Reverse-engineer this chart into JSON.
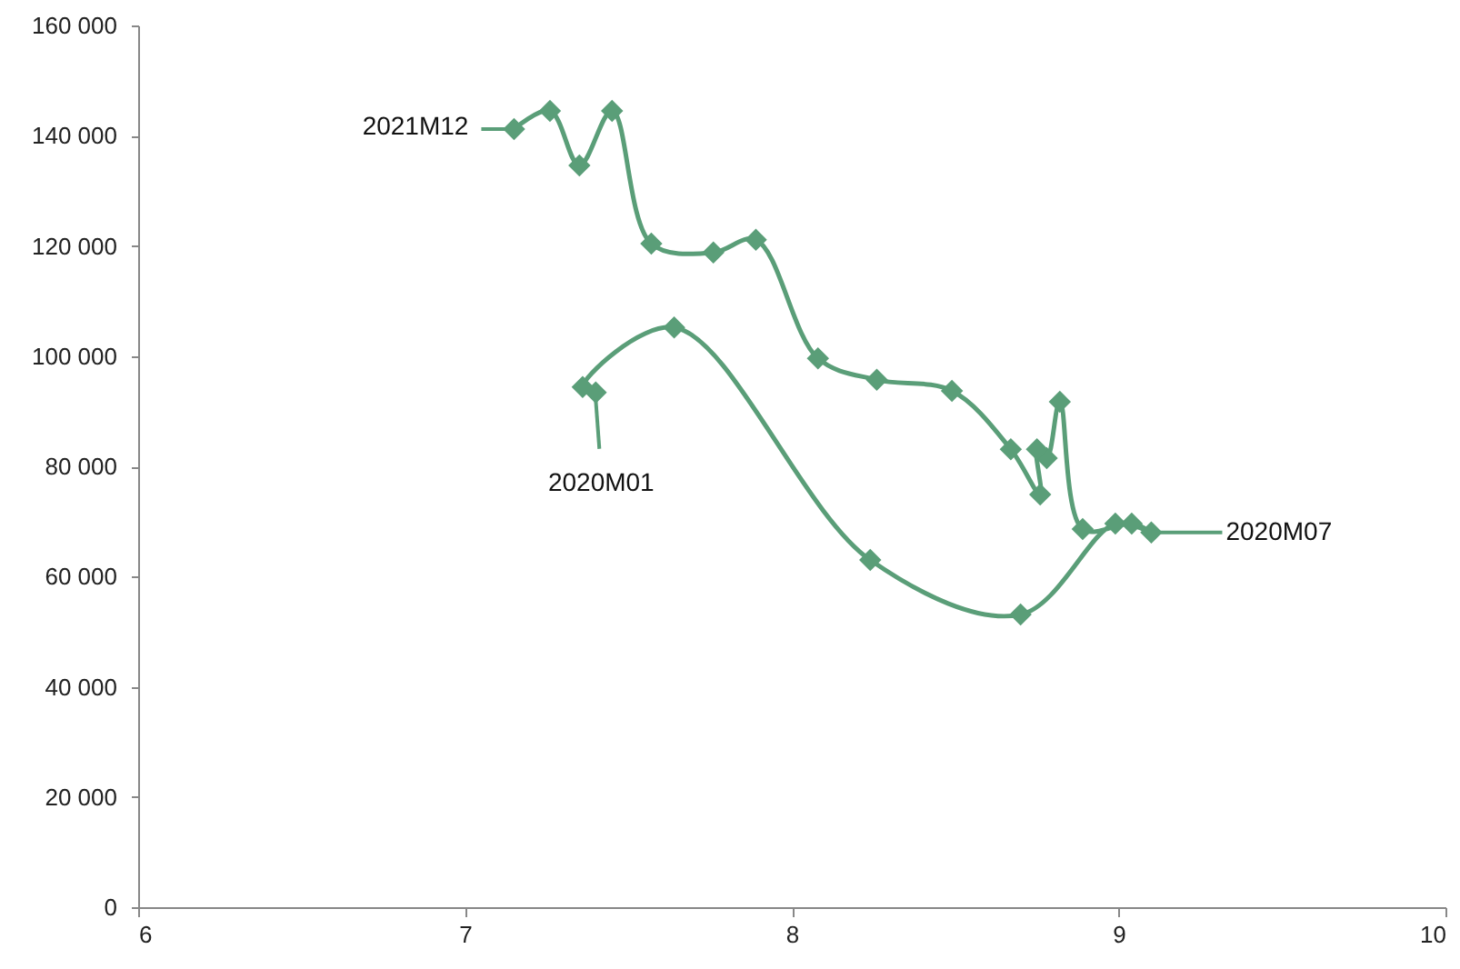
{
  "chart_data": {
    "type": "line",
    "marker": "diamond",
    "line_style": "solid",
    "grid": false,
    "x": [
      7.4,
      7.36,
      7.64,
      8.24,
      8.7,
      8.99,
      9.1,
      9.04,
      8.89,
      8.82,
      8.78,
      8.75,
      8.76,
      8.67,
      8.49,
      8.26,
      8.08,
      7.89,
      7.76,
      7.57,
      7.45,
      7.35,
      7.26,
      7.15
    ],
    "series": [
      {
        "color": "#5a9e78",
        "values": [
          93400,
          94400,
          105200,
          63000,
          53100,
          69600,
          68000,
          69600,
          68600,
          91700,
          81500,
          83100,
          74900,
          83100,
          93700,
          95700,
          99600,
          121100,
          118800,
          120400,
          144500,
          134600,
          144500,
          141200
        ]
      }
    ],
    "xlim": [
      6,
      10
    ],
    "xticks": [
      6,
      7,
      8,
      9,
      10
    ],
    "ylim": [
      0,
      160000
    ],
    "yticks": [
      0,
      {
        "value": 20000,
        "label": "20 000"
      },
      {
        "value": 40000,
        "label": "40 000"
      },
      {
        "value": 60000,
        "label": "60 000"
      },
      {
        "value": 80000,
        "label": "80 000"
      },
      {
        "value": 100000,
        "label": "100 000"
      },
      {
        "value": 120000,
        "label": "120 000"
      },
      {
        "value": 140000,
        "label": "140 000"
      },
      {
        "value": 160000,
        "label": "160 000"
      }
    ],
    "annotations": [
      {
        "text": "2020M01",
        "x": 7.4,
        "y": 93400
      },
      {
        "text": "2020M07",
        "x": 9.1,
        "y": 68000
      },
      {
        "text": "2021M12",
        "x": 7.15,
        "y": 141200
      }
    ]
  }
}
